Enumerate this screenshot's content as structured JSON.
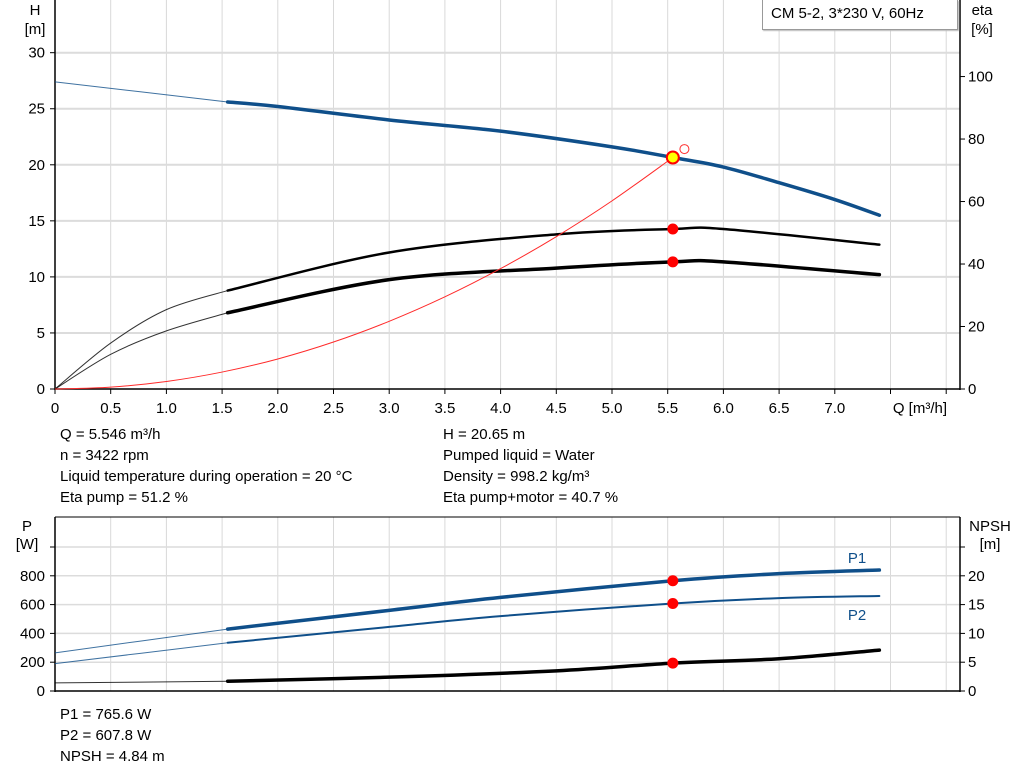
{
  "legend_label": "CM 5-2, 3*230 V, 60Hz",
  "chart_data": [
    {
      "type": "line",
      "title": "",
      "xlabel": "Q [m³/h]",
      "ylabel_left": [
        "H",
        "[m]"
      ],
      "ylabel_right": [
        "eta",
        "[%]"
      ],
      "xlim": [
        0,
        8.0
      ],
      "ylim_left": [
        0,
        34.7
      ],
      "ylim_right": [
        0,
        124.5
      ],
      "x_ticks": [
        "0",
        "0.5",
        "1.0",
        "1.5",
        "2.0",
        "2.5",
        "3.0",
        "3.5",
        "4.0",
        "4.5",
        "5.0",
        "5.5",
        "6.0",
        "6.5",
        "7.0"
      ],
      "y_ticks_left": [
        0,
        5,
        10,
        15,
        20,
        25,
        30
      ],
      "y_ticks_right": [
        0,
        20,
        40,
        60,
        80,
        100
      ],
      "grid": true,
      "series": [
        {
          "id": "head",
          "axis": "left",
          "color": "#0f4f8a",
          "width": 3.5,
          "valid_q_min": 1.55,
          "x": [
            0,
            1.55,
            2,
            3,
            4,
            5,
            5.546,
            6,
            6.5,
            7,
            7.4
          ],
          "y": [
            27.4,
            25.6,
            25.2,
            24.0,
            23.0,
            21.6,
            20.65,
            19.8,
            18.4,
            16.9,
            15.5
          ]
        },
        {
          "id": "eta-pump",
          "axis": "right",
          "color": "#000000",
          "width": 2.5,
          "valid_q_min": 1.55,
          "x": [
            0,
            0.5,
            1.0,
            1.55,
            3,
            4.5,
            5.546,
            6,
            7.4
          ],
          "y": [
            0,
            14.7,
            25.4,
            31.5,
            43.7,
            49.5,
            51.2,
            51.2,
            46.2
          ]
        },
        {
          "id": "eta-pump-motor",
          "axis": "right",
          "color": "#000000",
          "width": 3.5,
          "valid_q_min": 1.55,
          "x": [
            0,
            0.5,
            1.0,
            1.55,
            3,
            4.5,
            5.546,
            6,
            7.4
          ],
          "y": [
            0,
            11.1,
            18.6,
            24.4,
            35.0,
            38.7,
            40.7,
            40.7,
            36.6
          ]
        },
        {
          "id": "system-curve",
          "axis": "left",
          "color": "#ff2a2a",
          "width": 1,
          "x": [
            0,
            0.5,
            1,
            1.5,
            2,
            2.5,
            3,
            3.5,
            4,
            4.5,
            5,
            5.546
          ],
          "y": [
            0,
            0.17,
            0.67,
            1.51,
            2.68,
            4.19,
            6.04,
            8.22,
            10.74,
            13.59,
            16.78,
            20.65
          ]
        }
      ],
      "operating_point": {
        "q": 5.546,
        "h": 20.65,
        "eta_pump": 51.2,
        "eta_pump_motor": 40.7
      },
      "system_curve_end": {
        "q": 5.65,
        "h": 21.4
      }
    },
    {
      "type": "line",
      "title": "",
      "xlabel": "",
      "ylabel_left": [
        "P",
        "[W]"
      ],
      "ylabel_right": [
        "NPSH",
        "[m]"
      ],
      "xlim": [
        0,
        8.0
      ],
      "ylim_left": [
        0,
        1000
      ],
      "ylim_right": [
        0,
        25
      ],
      "y_ticks_left": [
        0,
        200,
        400,
        600,
        800
      ],
      "y_ticks_right": [
        0,
        5,
        10,
        15,
        20
      ],
      "grid": true,
      "series": [
        {
          "id": "p1",
          "name": "P1",
          "axis": "left",
          "color": "#0f4f8a",
          "width": 3.5,
          "valid_q_min": 1.55,
          "x": [
            0,
            1.55,
            3,
            4,
            5.546,
            6.5,
            7.4
          ],
          "y": [
            265,
            430,
            560,
            650,
            765.6,
            815,
            840
          ]
        },
        {
          "id": "p2",
          "name": "P2",
          "axis": "left",
          "color": "#0f4f8a",
          "width": 2,
          "valid_q_min": 1.55,
          "x": [
            0,
            1.55,
            3,
            4,
            5.546,
            6.5,
            7.4
          ],
          "y": [
            190,
            335,
            445,
            520,
            607.8,
            645,
            660
          ]
        },
        {
          "id": "npsh",
          "axis": "right",
          "color": "#000000",
          "width": 3.5,
          "valid_q_min": 1.55,
          "x": [
            0,
            1.55,
            3,
            4.5,
            5.546,
            6.5,
            7.4
          ],
          "y": [
            1.4,
            1.7,
            2.4,
            3.5,
            4.84,
            5.6,
            7.1
          ]
        }
      ],
      "operating_point": {
        "q": 5.546,
        "p1": 765.6,
        "p2": 607.8,
        "npsh": 4.84
      }
    }
  ],
  "info_top_left": [
    "Q = 5.546 m³/h",
    "n = 3422 rpm",
    "Liquid temperature during operation = 20 °C",
    "Eta pump = 51.2 %"
  ],
  "info_top_right": [
    "H = 20.65 m",
    "Pumped liquid = Water",
    "Density = 998.2 kg/m³",
    "Eta pump+motor = 40.7 %"
  ],
  "info_bottom": [
    "P1 = 765.6 W",
    "P2 = 607.8 W",
    "NPSH = 4.84 m"
  ]
}
